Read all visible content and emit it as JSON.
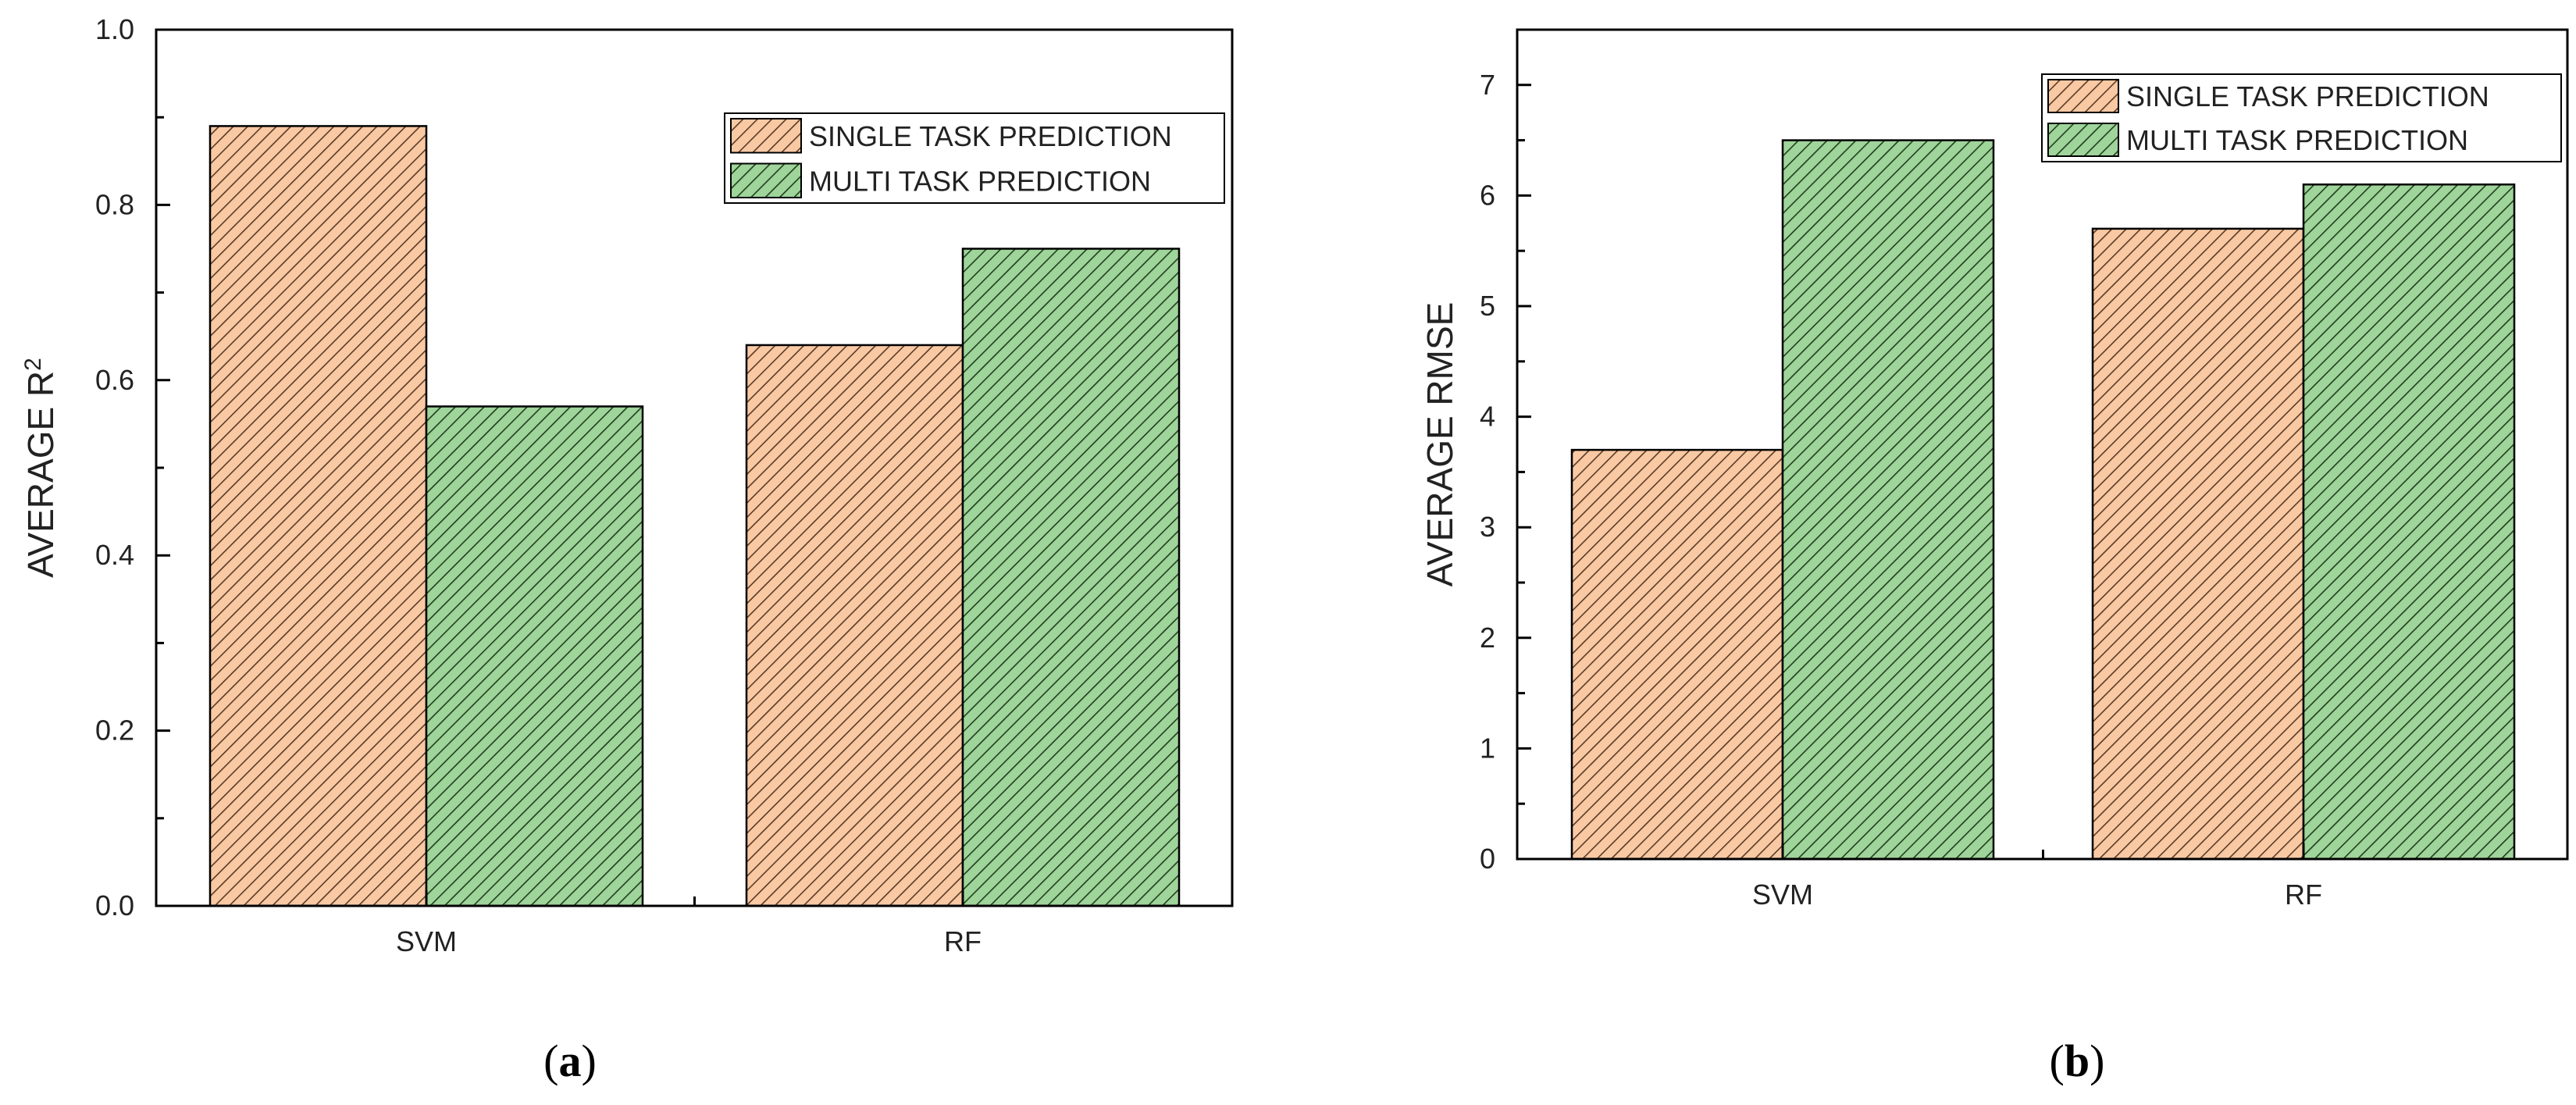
{
  "colors": {
    "single_fill": "#f9c9a4",
    "single_hatch": "#5a3a24",
    "multi_fill": "#9fd49a",
    "multi_hatch": "#1f3f1c",
    "axis": "#000000"
  },
  "panels": [
    {
      "open": "(",
      "letter": "a",
      "close": ")"
    },
    {
      "open": "(",
      "letter": "b",
      "close": ")"
    }
  ],
  "chart_data": [
    {
      "type": "bar",
      "title": "",
      "categories": [
        "SVM",
        "RF"
      ],
      "series": [
        {
          "name": "SINGLE TASK PREDICTION",
          "values": [
            0.89,
            0.64
          ]
        },
        {
          "name": "MULTI TASK PREDICTION",
          "values": [
            0.57,
            0.75
          ]
        }
      ],
      "xlabel": "",
      "ylabel": "AVERAGE R²",
      "ylabel_base": "AVERAGE R",
      "ylabel_sup": "2",
      "ylim": [
        0,
        1.0
      ],
      "yticks": [
        "0.0",
        "0.2",
        "0.4",
        "0.6",
        "0.8",
        "1.0"
      ],
      "legend": "top-right"
    },
    {
      "type": "bar",
      "title": "",
      "categories": [
        "SVM",
        "RF"
      ],
      "series": [
        {
          "name": "SINGLE TASK PREDICTION",
          "values": [
            3.7,
            5.7
          ]
        },
        {
          "name": "MULTI TASK PREDICTION",
          "values": [
            6.5,
            6.1
          ]
        }
      ],
      "xlabel": "",
      "ylabel": "AVERAGE RMSE",
      "ylabel_base": "AVERAGE RMSE",
      "ylabel_sup": "",
      "ylim": [
        0,
        7.5
      ],
      "yticks": [
        "0",
        "1",
        "2",
        "3",
        "4",
        "5",
        "6",
        "7"
      ],
      "legend": "top-right"
    }
  ]
}
